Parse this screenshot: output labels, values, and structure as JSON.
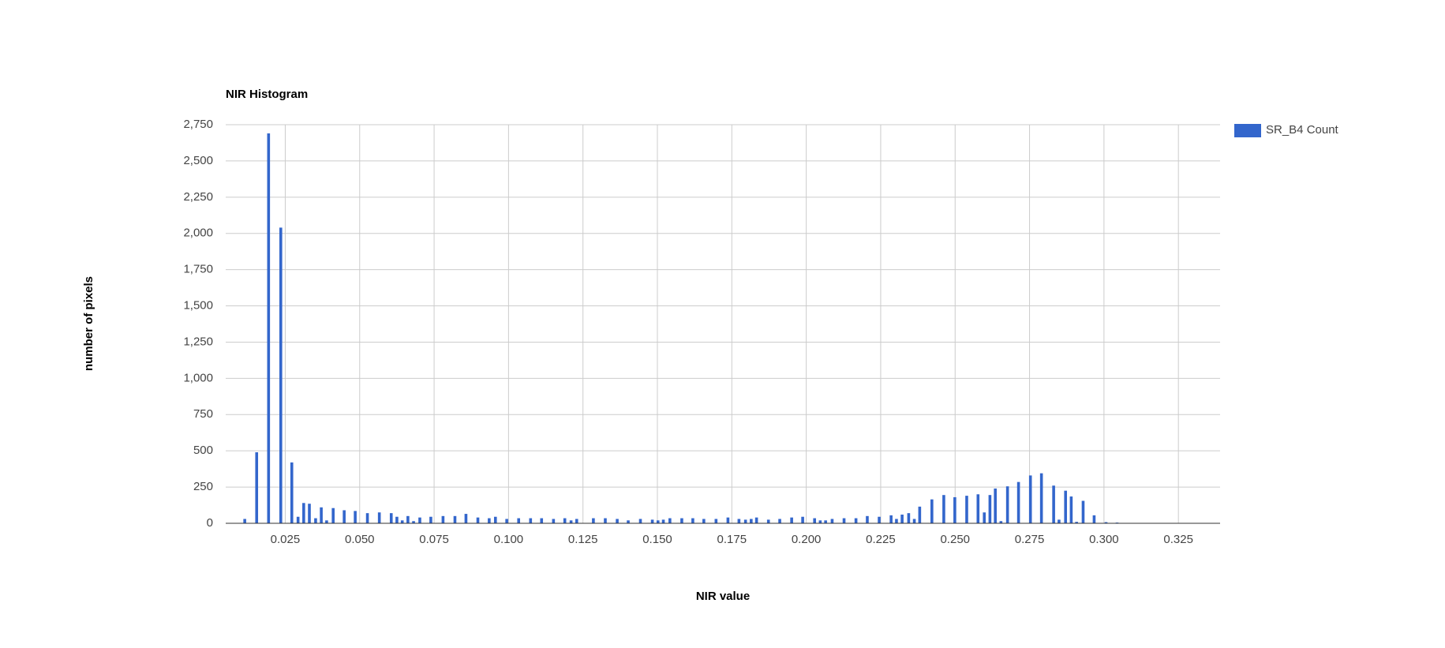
{
  "chart_data": {
    "type": "histogram",
    "title": "NIR Histogram",
    "x_label": "NIR value",
    "y_label": "number of pixels",
    "x": [
      0.0114,
      0.0154,
      0.0194,
      0.0235,
      0.0272,
      0.0293,
      0.0312,
      0.0331,
      0.0352,
      0.0371,
      0.0389,
      0.0411,
      0.0448,
      0.0485,
      0.0526,
      0.0566,
      0.0606,
      0.0625,
      0.0643,
      0.0662,
      0.0681,
      0.0702,
      0.0739,
      0.078,
      0.082,
      0.0857,
      0.0897,
      0.0935,
      0.0956,
      0.0994,
      0.1034,
      0.1074,
      0.1111,
      0.1151,
      0.1189,
      0.121,
      0.1229,
      0.1285,
      0.1325,
      0.1365,
      0.1402,
      0.1443,
      0.1483,
      0.1502,
      0.152,
      0.1542,
      0.1582,
      0.1619,
      0.1656,
      0.1697,
      0.1737,
      0.1774,
      0.1796,
      0.1815,
      0.1833,
      0.1873,
      0.1911,
      0.1951,
      0.1988,
      0.2028,
      0.2047,
      0.2065,
      0.2087,
      0.2127,
      0.2167,
      0.2205,
      0.2245,
      0.2285,
      0.2303,
      0.2322,
      0.2344,
      0.2363,
      0.2381,
      0.2422,
      0.2462,
      0.2499,
      0.2539,
      0.2577,
      0.2598,
      0.2617,
      0.2635,
      0.2654,
      0.2676,
      0.2713,
      0.2753,
      0.279,
      0.2831,
      0.2849,
      0.2871,
      0.289,
      0.2908,
      0.293,
      0.2967,
      0.3007,
      0.3044
    ],
    "series": [
      {
        "name": "SR_B4 Count",
        "color": "#3366cc",
        "values": [
          30,
          490,
          2690,
          2040,
          420,
          45,
          140,
          135,
          35,
          110,
          20,
          105,
          90,
          85,
          70,
          75,
          70,
          45,
          20,
          50,
          15,
          40,
          45,
          50,
          50,
          65,
          40,
          35,
          45,
          30,
          35,
          35,
          35,
          30,
          35,
          20,
          30,
          35,
          35,
          30,
          20,
          30,
          25,
          20,
          25,
          35,
          35,
          35,
          30,
          30,
          40,
          30,
          25,
          30,
          40,
          25,
          30,
          40,
          45,
          35,
          20,
          20,
          30,
          35,
          35,
          50,
          45,
          55,
          30,
          60,
          70,
          30,
          115,
          165,
          195,
          180,
          190,
          200,
          75,
          195,
          240,
          15,
          255,
          285,
          330,
          345,
          260,
          25,
          225,
          185,
          10,
          155,
          55,
          8,
          5
        ]
      }
    ],
    "xlim": [
      0.005,
      0.339
    ],
    "ylim": [
      0,
      2750
    ],
    "xticks": [
      0.025,
      {
        "value": 0.05,
        "label": "0.050"
      },
      0.075,
      {
        "value": 0.1,
        "label": "0.100"
      },
      0.125,
      {
        "value": 0.15,
        "label": "0.150"
      },
      0.175,
      {
        "value": 0.2,
        "label": "0.200"
      },
      0.225,
      {
        "value": 0.25,
        "label": "0.250"
      },
      0.275,
      {
        "value": 0.3,
        "label": "0.300"
      },
      0.325
    ],
    "yticks": [
      0,
      250,
      500,
      750,
      {
        "value": 1000,
        "label": "1,000"
      },
      {
        "value": 1250,
        "label": "1,250"
      },
      {
        "value": 1500,
        "label": "1,500"
      },
      {
        "value": 1750,
        "label": "1,750"
      },
      {
        "value": 2000,
        "label": "2,000"
      },
      {
        "value": 2250,
        "label": "2,250"
      },
      {
        "value": 2500,
        "label": "2,500"
      },
      {
        "value": 2750,
        "label": "2,750"
      }
    ],
    "grid": true,
    "legend": "right"
  }
}
